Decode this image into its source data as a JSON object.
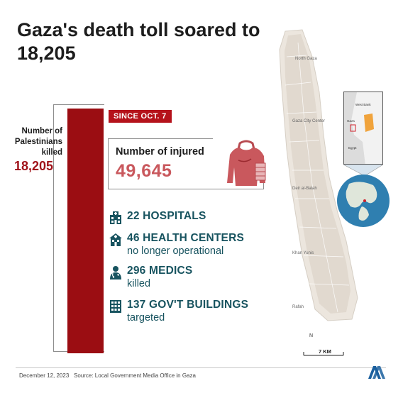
{
  "title": "Gaza's death toll soared to 18,205",
  "killed": {
    "label": "Number of Palestinians killed",
    "value": "18,205"
  },
  "since_badge": "SINCE OCT. 7",
  "injured": {
    "label": "Number of injured",
    "value": "49,645"
  },
  "stats": [
    {
      "line1": "22 HOSPITALS",
      "line2": "",
      "icon": "hospital-icon"
    },
    {
      "line1": "46 HEALTH CENTERS",
      "line2": "no longer operational",
      "icon": "health-center-icon"
    },
    {
      "line1": "296 MEDICS",
      "line2": "killed",
      "icon": "medic-icon"
    },
    {
      "line1": "137 GOV'T BUILDINGS",
      "line2": "targeted",
      "icon": "government-building-icon"
    }
  ],
  "map": {
    "places": [
      "North Gaza",
      "Gaza City Center",
      "Deir al-Balah",
      "Khan Yunis",
      "Rafah"
    ],
    "inset_labels": [
      "West Bank",
      "Gaza",
      "Egypt"
    ],
    "scale": "7 KM",
    "compass": "N"
  },
  "footer": {
    "date": "December 12, 2023",
    "source": "Source: Local Government Media Office in Gaza",
    "logo": "AA"
  },
  "colors": {
    "bar": "#9b0d12",
    "badge": "#b5121b",
    "injured": "#c9585d",
    "teal": "#17535f"
  }
}
